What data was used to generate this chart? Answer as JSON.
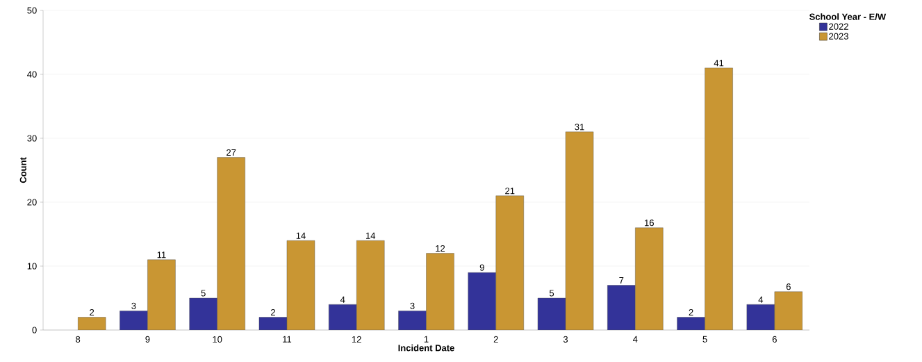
{
  "chart_data": {
    "type": "bar",
    "xlabel": "Incident Date",
    "ylabel": "Count",
    "legend_title": "School Year - E/W",
    "categories": [
      "8",
      "9",
      "10",
      "11",
      "12",
      "1",
      "2",
      "3",
      "4",
      "5",
      "6"
    ],
    "series": [
      {
        "name": "2022",
        "color": "#333399",
        "values": [
          null,
          3,
          5,
          2,
          4,
          3,
          9,
          5,
          7,
          2,
          4
        ]
      },
      {
        "name": "2023",
        "color": "#c99633",
        "values": [
          2,
          11,
          27,
          14,
          14,
          12,
          21,
          31,
          16,
          41,
          6
        ]
      }
    ],
    "ylim": [
      0,
      50
    ],
    "yticks": [
      0,
      10,
      20,
      30,
      40,
      50
    ],
    "grid": "y",
    "legend": "top right",
    "data_labels": true
  }
}
